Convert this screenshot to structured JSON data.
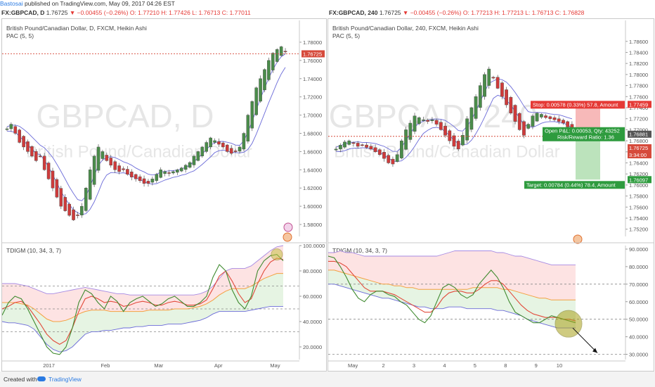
{
  "header": {
    "author": "Bastosai",
    "published": " published on TradingView.com, May 09, 2017 04:26 EST"
  },
  "left_ticker": {
    "symbol": "FX:GBPCAD, D",
    "price": "1.76725",
    "arrow": "▼",
    "change": "−0.00455 (−0.26%)",
    "ohlc": "O: 1.77210  H: 1.77426  L: 1.76713  C: 1.77011"
  },
  "right_ticker": {
    "symbol": "FX:GBPCAD, 240",
    "price": "1.76725",
    "arrow": "▼",
    "change": "−0.00455 (−0.26%)",
    "ohlc": "O: 1.77213  H: 1.77213  L: 1.76713  C: 1.76828"
  },
  "footer": {
    "created_with": "Created with",
    "brand": "TradingView"
  },
  "colors": {
    "up": "#4a8c4a",
    "down": "#cf3b3b",
    "pac": "#6a6ad8",
    "rsi_red": "#e24a3b",
    "rsi_green": "#3f8a2f",
    "band_orange": "#f4a040",
    "band_blue": "#6a6ad8",
    "band_purple": "#a78be3",
    "fill_red": "#fde0e0",
    "fill_green": "#e3f3e0",
    "watermark": "#e6e6e6"
  },
  "chart_data": [
    {
      "type": "candlestick",
      "panel": "left-price",
      "title": "British Pound/Canadian Dollar, D, FXCM, Heikin Ashi",
      "indicator": "PAC (5, 5)",
      "watermark_symbol": "GBPCAD, D",
      "watermark_name": "British Pound/Canadian Dollar",
      "ylim": [
        1.57,
        1.79
      ],
      "y_ticks": [
        "1.78000",
        "1.76000",
        "1.74000",
        "1.72000",
        "1.70000",
        "1.68000",
        "1.66000",
        "1.64000",
        "1.62000",
        "1.60000",
        "1.58000"
      ],
      "y_tick_values": [
        1.78,
        1.76,
        1.74,
        1.72,
        1.7,
        1.68,
        1.66,
        1.64,
        1.62,
        1.6,
        1.58
      ],
      "current_price": 1.76725,
      "current_price_label": "1.76725",
      "closes": [
        1.685,
        1.69,
        1.68,
        1.67,
        1.665,
        1.66,
        1.655,
        1.65,
        1.655,
        1.64,
        1.63,
        1.62,
        1.61,
        1.6,
        1.595,
        1.59,
        1.585,
        1.59,
        1.6,
        1.62,
        1.64,
        1.655,
        1.665,
        1.66,
        1.65,
        1.645,
        1.64,
        1.638,
        1.64,
        1.635,
        1.632,
        1.63,
        1.628,
        1.625,
        1.625,
        1.63,
        1.635,
        1.64,
        1.638,
        1.636,
        1.638,
        1.64,
        1.642,
        1.645,
        1.648,
        1.655,
        1.66,
        1.665,
        1.67,
        1.675,
        1.672,
        1.668,
        1.665,
        1.66,
        1.658,
        1.66,
        1.665,
        1.68,
        1.7,
        1.715,
        1.73,
        1.74,
        1.75,
        1.76,
        1.768,
        1.772,
        1.775,
        1.77
      ],
      "x_ticks": [
        "2017",
        "Feb",
        "Mar",
        "Apr",
        "May"
      ],
      "x_tick_index": [
        14,
        32,
        49,
        68,
        88
      ]
    },
    {
      "type": "line",
      "panel": "left-indicator",
      "title": "TDIGM (10, 34, 3, 7)",
      "ylim": [
        10,
        100
      ],
      "y_ticks": [
        "100.0000",
        "80.0000",
        "60.0000",
        "40.0000",
        "20.0000"
      ],
      "y_tick_values": [
        100,
        80,
        60,
        40,
        20
      ],
      "dashed_levels": [
        68,
        50,
        32
      ],
      "series": [
        {
          "name": "fast",
          "values": [
            45,
            55,
            60,
            58,
            50,
            40,
            30,
            20,
            15,
            14,
            20,
            35,
            55,
            65,
            62,
            55,
            50,
            60,
            56,
            48,
            55,
            58,
            60,
            56,
            52,
            54,
            58,
            60,
            56,
            52,
            52,
            55,
            60,
            75,
            85,
            80,
            65,
            55,
            50,
            60,
            80,
            88,
            92,
            93,
            88
          ]
        },
        {
          "name": "slow",
          "values": [
            50,
            52,
            55,
            56,
            52,
            45,
            38,
            30,
            25,
            22,
            25,
            35,
            48,
            58,
            60,
            58,
            55,
            56,
            55,
            52,
            53,
            55,
            56,
            55,
            53,
            53,
            55,
            56,
            55,
            53,
            53,
            54,
            57,
            66,
            76,
            80,
            72,
            62,
            55,
            58,
            70,
            80,
            87,
            90,
            89
          ]
        },
        {
          "name": "upper_band",
          "values": [
            70,
            70,
            70,
            69,
            68,
            66,
            64,
            62,
            62,
            63,
            64,
            65,
            66,
            67,
            66,
            65,
            64,
            63,
            62,
            62,
            61,
            61,
            61,
            61,
            61,
            61,
            61,
            61,
            61,
            61,
            61,
            62,
            64,
            68,
            74,
            80,
            82,
            82,
            82,
            84,
            88,
            92,
            96,
            99,
            100
          ]
        },
        {
          "name": "mid_band",
          "values": [
            55,
            55,
            55,
            54,
            53,
            50,
            46,
            42,
            40,
            40,
            41,
            43,
            46,
            48,
            49,
            49,
            49,
            48,
            48,
            48,
            48,
            48,
            48,
            49,
            49,
            49,
            49,
            50,
            50,
            50,
            51,
            52,
            54,
            57,
            61,
            64,
            66,
            66,
            66,
            68,
            71,
            74,
            76,
            78,
            78
          ]
        },
        {
          "name": "lower_band",
          "values": [
            40,
            39,
            39,
            38,
            37,
            34,
            28,
            22,
            18,
            16,
            17,
            20,
            25,
            30,
            32,
            32,
            33,
            33,
            34,
            35,
            35,
            36,
            36,
            37,
            37,
            37,
            38,
            38,
            38,
            39,
            40,
            41,
            43,
            46,
            48,
            48,
            48,
            48,
            48,
            49,
            50,
            51,
            52,
            52,
            52
          ]
        }
      ]
    },
    {
      "type": "candlestick",
      "panel": "right-price",
      "title": "British Pound/Canadian Dollar, 240, FXCM, Heikin Ashi",
      "indicator": "PAC (5, 5)",
      "watermark_symbol": "GBPCAD, 240",
      "watermark_name": "British Pound/Canadian Dollar",
      "ylim": [
        1.7512,
        1.7875
      ],
      "y_ticks": [
        "1.78600",
        "1.78400",
        "1.78200",
        "1.78000",
        "1.77800",
        "1.77600",
        "1.77400",
        "1.77200",
        "1.77000",
        "1.76800",
        "1.76600",
        "1.76400",
        "1.76200",
        "1.76000",
        "1.75800",
        "1.75600",
        "1.75400",
        "1.75200"
      ],
      "y_tick_values": [
        1.786,
        1.784,
        1.782,
        1.78,
        1.778,
        1.776,
        1.774,
        1.772,
        1.77,
        1.768,
        1.766,
        1.764,
        1.762,
        1.76,
        1.758,
        1.756,
        1.754,
        1.752
      ],
      "price_labels": {
        "stop_price": "1.77459",
        "current": "1.76881",
        "last": "1.76725",
        "countdown": "3:34:00",
        "target_price": "1.76097"
      },
      "position": {
        "stop_text": "Stop: 0.00578 (0.33%) 57.8, Amount",
        "open_pl_text": "Open P&L: 0.00053, Qty: 43252",
        "rr_text": "Risk/Reward Ratio: 1.36",
        "target_text": "Target: 0.00784 (0.44%) 78.4, Amount",
        "entry": 1.76881,
        "stop": 1.77459,
        "target": 1.76097
      },
      "closes": [
        1.7665,
        1.7672,
        1.7678,
        1.768,
        1.7675,
        1.767,
        1.7672,
        1.7668,
        1.7665,
        1.766,
        1.7655,
        1.7648,
        1.764,
        1.7638,
        1.7655,
        1.768,
        1.77,
        1.7712,
        1.7725,
        1.7722,
        1.7718,
        1.7715,
        1.7718,
        1.771,
        1.77,
        1.769,
        1.768,
        1.767,
        1.7665,
        1.769,
        1.772,
        1.774,
        1.776,
        1.778,
        1.78,
        1.781,
        1.7795,
        1.7775,
        1.776,
        1.7745,
        1.773,
        1.7715,
        1.77,
        1.769,
        1.771,
        1.7725,
        1.773,
        1.7728,
        1.7722,
        1.772,
        1.7718,
        1.7715,
        1.7712,
        1.7705,
        1.7695
      ],
      "x_ticks": [
        "May",
        "2",
        "3",
        "4",
        "5",
        "8",
        "9",
        "10"
      ],
      "x_tick_index": [
        5,
        13,
        21,
        29,
        37,
        45,
        53,
        61
      ]
    },
    {
      "type": "line",
      "panel": "right-indicator",
      "title": "TDIGM (10, 34, 3, 7)",
      "ylim": [
        27,
        92
      ],
      "y_ticks": [
        "90.0000",
        "80.0000",
        "70.0000",
        "60.0000",
        "50.0000",
        "40.0000",
        "30.0000"
      ],
      "y_tick_values": [
        90,
        80,
        70,
        60,
        50,
        40,
        30
      ],
      "dashed_levels": [
        70,
        50,
        30
      ],
      "series": [
        {
          "name": "fast",
          "values": [
            86,
            85,
            80,
            74,
            67,
            62,
            60,
            64,
            66,
            66,
            64,
            63,
            60,
            58,
            54,
            50,
            48,
            52,
            60,
            68,
            70,
            68,
            64,
            62,
            64,
            70,
            74,
            78,
            74,
            68,
            60,
            54,
            52,
            50,
            48,
            48,
            50,
            52,
            51,
            50,
            49,
            48
          ]
        },
        {
          "name": "slow",
          "values": [
            83,
            83,
            82,
            80,
            76,
            72,
            68,
            66,
            66,
            66,
            65,
            64,
            62,
            60,
            58,
            56,
            54,
            54,
            57,
            62,
            65,
            66,
            66,
            65,
            65,
            67,
            70,
            72,
            72,
            70,
            66,
            62,
            58,
            55,
            53,
            52,
            51,
            51,
            51,
            50,
            50,
            49
          ]
        },
        {
          "name": "upper_band",
          "values": [
            88,
            88,
            89,
            88,
            88,
            87,
            86,
            86,
            86,
            86,
            86,
            86,
            86,
            86,
            86,
            86,
            86,
            86,
            86,
            87,
            88,
            89,
            89,
            89,
            89,
            89,
            89,
            89,
            88,
            88,
            87,
            86,
            86,
            85,
            84,
            83,
            82,
            81,
            81,
            81,
            81,
            81
          ]
        },
        {
          "name": "mid_band",
          "values": [
            78,
            78,
            77,
            76,
            75,
            74,
            73,
            72,
            71,
            70,
            70,
            69,
            69,
            68,
            68,
            67,
            67,
            67,
            67,
            67,
            67,
            67,
            67,
            67,
            68,
            68,
            68,
            68,
            68,
            67,
            67,
            66,
            65,
            64,
            63,
            62,
            62,
            61,
            61,
            61,
            61,
            61
          ]
        },
        {
          "name": "lower_band",
          "values": [
            70,
            70,
            69,
            68,
            67,
            66,
            65,
            64,
            63,
            62,
            62,
            61,
            60,
            59,
            58,
            57,
            57,
            56,
            56,
            56,
            57,
            57,
            57,
            56,
            56,
            56,
            56,
            56,
            55,
            55,
            54,
            53,
            52,
            50,
            49,
            48,
            47,
            46,
            45,
            45,
            45,
            45
          ]
        }
      ],
      "projection_arrow": {
        "from_index": 41,
        "from_value": 49,
        "to_label": "10",
        "to_value": 30
      }
    }
  ]
}
